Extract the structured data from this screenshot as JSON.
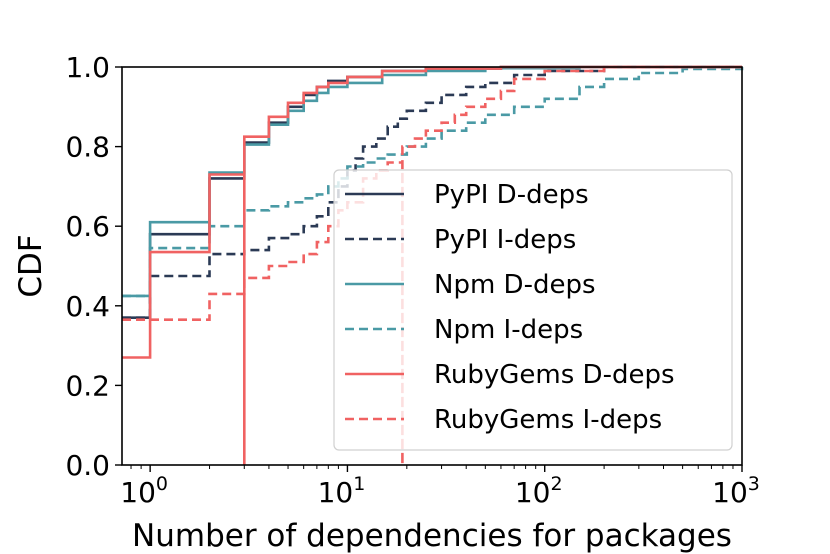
{
  "chart_data": {
    "type": "line",
    "step": true,
    "xscale": "log",
    "xlabel": "Number of dependencies for packages",
    "ylabel": "CDF",
    "xlim": [
      0.72,
      1000
    ],
    "ylim": [
      0.0,
      1.0
    ],
    "grid": false,
    "legend_position": "lower-right",
    "x_ticks": [
      {
        "base": "10",
        "exp": "0",
        "value": 1
      },
      {
        "base": "10",
        "exp": "1",
        "value": 10
      },
      {
        "base": "10",
        "exp": "2",
        "value": 100
      },
      {
        "base": "10",
        "exp": "3",
        "value": 1000
      }
    ],
    "y_ticks": [
      {
        "label": "0.0",
        "value": 0.0
      },
      {
        "label": "0.2",
        "value": 0.2
      },
      {
        "label": "0.4",
        "value": 0.4
      },
      {
        "label": "0.6",
        "value": 0.6
      },
      {
        "label": "0.8",
        "value": 0.8
      },
      {
        "label": "1.0",
        "value": 1.0
      }
    ],
    "series": [
      {
        "name": "PyPI D-deps",
        "color": "#2b3a55",
        "dash": "solid",
        "points": [
          [
            0.72,
            0.37
          ],
          [
            1,
            0.58
          ],
          [
            2,
            0.72
          ],
          [
            3,
            0.81
          ],
          [
            4,
            0.86
          ],
          [
            5,
            0.9
          ],
          [
            6,
            0.93
          ],
          [
            7,
            0.95
          ],
          [
            8,
            0.965
          ],
          [
            10,
            0.975
          ],
          [
            15,
            0.99
          ],
          [
            25,
            0.996
          ],
          [
            60,
            1.0
          ],
          [
            1000,
            1.0
          ]
        ]
      },
      {
        "name": "PyPI I-deps",
        "color": "#2b3a55",
        "dash": "dashed",
        "points": [
          [
            0.72,
            0.37
          ],
          [
            1,
            0.475
          ],
          [
            2,
            0.53
          ],
          [
            3,
            0.54
          ],
          [
            4,
            0.57
          ],
          [
            5,
            0.58
          ],
          [
            6,
            0.6
          ],
          [
            7,
            0.625
          ],
          [
            8,
            0.66
          ],
          [
            9,
            0.7
          ],
          [
            10,
            0.74
          ],
          [
            11,
            0.77
          ],
          [
            12,
            0.8
          ],
          [
            14,
            0.82
          ],
          [
            16,
            0.85
          ],
          [
            18,
            0.87
          ],
          [
            20,
            0.89
          ],
          [
            25,
            0.91
          ],
          [
            30,
            0.93
          ],
          [
            40,
            0.95
          ],
          [
            50,
            0.96
          ],
          [
            70,
            0.98
          ],
          [
            100,
            0.99
          ],
          [
            200,
            1.0
          ],
          [
            1000,
            1.0
          ]
        ]
      },
      {
        "name": "Npm D-deps",
        "color": "#4a9aa5",
        "dash": "solid",
        "points": [
          [
            0.72,
            0.425
          ],
          [
            1,
            0.61
          ],
          [
            2,
            0.735
          ],
          [
            3,
            0.805
          ],
          [
            4,
            0.855
          ],
          [
            5,
            0.89
          ],
          [
            6,
            0.915
          ],
          [
            7,
            0.935
          ],
          [
            8,
            0.95
          ],
          [
            10,
            0.96
          ],
          [
            15,
            0.98
          ],
          [
            25,
            0.99
          ],
          [
            50,
            0.997
          ],
          [
            150,
            1.0
          ],
          [
            1000,
            1.0
          ]
        ]
      },
      {
        "name": "Npm I-deps",
        "color": "#4a9aa5",
        "dash": "dashed",
        "points": [
          [
            0.72,
            0.425
          ],
          [
            1,
            0.545
          ],
          [
            2,
            0.6
          ],
          [
            3,
            0.64
          ],
          [
            4,
            0.65
          ],
          [
            5,
            0.66
          ],
          [
            6,
            0.67
          ],
          [
            7,
            0.68
          ],
          [
            8,
            0.7
          ],
          [
            9,
            0.72
          ],
          [
            10,
            0.75
          ],
          [
            12,
            0.76
          ],
          [
            14,
            0.77
          ],
          [
            16,
            0.78
          ],
          [
            20,
            0.8
          ],
          [
            25,
            0.82
          ],
          [
            30,
            0.84
          ],
          [
            40,
            0.86
          ],
          [
            50,
            0.88
          ],
          [
            70,
            0.9
          ],
          [
            100,
            0.92
          ],
          [
            150,
            0.95
          ],
          [
            200,
            0.97
          ],
          [
            300,
            0.985
          ],
          [
            500,
            0.995
          ],
          [
            1000,
            1.0
          ]
        ]
      },
      {
        "name": "RubyGems D-deps",
        "color": "#f06262",
        "dash": "solid",
        "points": [
          [
            0.72,
            0.27
          ],
          [
            1,
            0.535
          ],
          [
            2,
            0.73
          ],
          [
            3,
            0.0
          ],
          [
            3,
            0.825
          ],
          [
            4,
            0.875
          ],
          [
            5,
            0.91
          ],
          [
            6,
            0.935
          ],
          [
            7,
            0.95
          ],
          [
            8,
            0.96
          ],
          [
            10,
            0.975
          ],
          [
            15,
            0.99
          ],
          [
            25,
            0.996
          ],
          [
            60,
            1.0
          ],
          [
            1000,
            1.0
          ]
        ]
      },
      {
        "name": "RubyGems I-deps",
        "color": "#f06262",
        "dash": "dashed",
        "points": [
          [
            0.72,
            0.365
          ],
          [
            1,
            0.365
          ],
          [
            2,
            0.43
          ],
          [
            3,
            0.47
          ],
          [
            4,
            0.5
          ],
          [
            5,
            0.51
          ],
          [
            6,
            0.53
          ],
          [
            7,
            0.56
          ],
          [
            8,
            0.6
          ],
          [
            9,
            0.64
          ],
          [
            10,
            0.66
          ],
          [
            12,
            0.72
          ],
          [
            14,
            0.74
          ],
          [
            16,
            0.76
          ],
          [
            19,
            0.0
          ],
          [
            19,
            0.8
          ],
          [
            22,
            0.82
          ],
          [
            25,
            0.84
          ],
          [
            30,
            0.86
          ],
          [
            35,
            0.88
          ],
          [
            40,
            0.9
          ],
          [
            50,
            0.92
          ],
          [
            60,
            0.94
          ],
          [
            70,
            0.97
          ],
          [
            100,
            0.99
          ],
          [
            200,
            1.0
          ],
          [
            1000,
            1.0
          ]
        ]
      }
    ]
  }
}
